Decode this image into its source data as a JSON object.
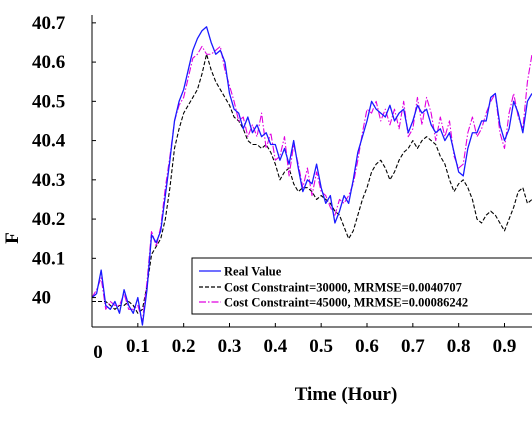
{
  "chart_data": {
    "type": "line",
    "xlabel": "Time (Hour)",
    "ylabel": "F",
    "xlim": [
      0,
      0.96
    ],
    "ylim": [
      39.925,
      40.72
    ],
    "x_ticks": [
      "0",
      "0.1",
      "0.2",
      "0.3",
      "0.4",
      "0.5",
      "0.6",
      "0.7",
      "0.8",
      "0.9"
    ],
    "y_ticks": [
      "40",
      "40.1",
      "40.2",
      "40.3",
      "40.4",
      "40.5",
      "40.6",
      "40.7"
    ],
    "grid": false,
    "legend_position": "bottom-right",
    "series": [
      {
        "name": "Real Value",
        "color": "#1a1aff",
        "style": "solid",
        "x": [
          0,
          0.01,
          0.02,
          0.03,
          0.04,
          0.05,
          0.06,
          0.07,
          0.08,
          0.09,
          0.1,
          0.11,
          0.12,
          0.13,
          0.14,
          0.15,
          0.16,
          0.17,
          0.18,
          0.19,
          0.2,
          0.21,
          0.22,
          0.23,
          0.24,
          0.25,
          0.26,
          0.27,
          0.28,
          0.29,
          0.3,
          0.31,
          0.32,
          0.33,
          0.34,
          0.35,
          0.36,
          0.37,
          0.38,
          0.39,
          0.4,
          0.41,
          0.42,
          0.43,
          0.44,
          0.45,
          0.46,
          0.47,
          0.48,
          0.49,
          0.5,
          0.51,
          0.52,
          0.53,
          0.54,
          0.55,
          0.56,
          0.57,
          0.58,
          0.59,
          0.6,
          0.61,
          0.62,
          0.63,
          0.64,
          0.65,
          0.66,
          0.67,
          0.68,
          0.69,
          0.7,
          0.71,
          0.72,
          0.73,
          0.74,
          0.75,
          0.76,
          0.77,
          0.78,
          0.79,
          0.8,
          0.81,
          0.82,
          0.83,
          0.84,
          0.85,
          0.86,
          0.87,
          0.88,
          0.89,
          0.9,
          0.91,
          0.92,
          0.93,
          0.94,
          0.95,
          0.96
        ],
        "y": [
          40.0,
          40.01,
          40.07,
          39.98,
          39.97,
          39.99,
          39.96,
          40.02,
          39.98,
          39.96,
          40.0,
          39.93,
          40.02,
          40.16,
          40.14,
          40.17,
          40.26,
          40.35,
          40.45,
          40.5,
          40.53,
          40.58,
          40.63,
          40.66,
          40.68,
          40.69,
          40.65,
          40.62,
          40.63,
          40.6,
          40.52,
          40.48,
          40.47,
          40.43,
          40.46,
          40.42,
          40.44,
          40.41,
          40.42,
          40.39,
          40.39,
          40.35,
          40.38,
          40.34,
          40.4,
          40.33,
          40.27,
          40.3,
          40.29,
          40.34,
          40.28,
          40.24,
          40.26,
          40.19,
          40.22,
          40.26,
          40.24,
          40.3,
          40.37,
          40.41,
          40.45,
          40.5,
          40.48,
          40.47,
          40.46,
          40.49,
          40.45,
          40.47,
          40.48,
          40.42,
          40.45,
          40.49,
          40.47,
          40.48,
          40.44,
          40.42,
          40.43,
          40.4,
          40.42,
          40.37,
          40.32,
          40.31,
          40.38,
          40.42,
          40.42,
          40.45,
          40.45,
          40.51,
          40.52,
          40.44,
          40.4,
          40.43,
          40.5,
          40.47,
          40.42,
          40.5,
          40.52
        ]
      },
      {
        "name": "Cost Constraint=30000, MRMSE=0.0040707",
        "color": "#000000",
        "style": "dashed",
        "x": [
          0,
          0.01,
          0.02,
          0.03,
          0.04,
          0.05,
          0.06,
          0.07,
          0.08,
          0.09,
          0.1,
          0.11,
          0.12,
          0.13,
          0.14,
          0.15,
          0.16,
          0.17,
          0.18,
          0.19,
          0.2,
          0.21,
          0.22,
          0.23,
          0.24,
          0.25,
          0.26,
          0.27,
          0.28,
          0.29,
          0.3,
          0.31,
          0.32,
          0.33,
          0.34,
          0.35,
          0.36,
          0.37,
          0.38,
          0.39,
          0.4,
          0.41,
          0.42,
          0.43,
          0.44,
          0.45,
          0.46,
          0.47,
          0.48,
          0.49,
          0.5,
          0.51,
          0.52,
          0.53,
          0.54,
          0.55,
          0.56,
          0.57,
          0.58,
          0.59,
          0.6,
          0.61,
          0.62,
          0.63,
          0.64,
          0.65,
          0.66,
          0.67,
          0.68,
          0.69,
          0.7,
          0.71,
          0.72,
          0.73,
          0.74,
          0.75,
          0.76,
          0.77,
          0.78,
          0.79,
          0.8,
          0.81,
          0.82,
          0.83,
          0.84,
          0.85,
          0.86,
          0.87,
          0.88,
          0.89,
          0.9,
          0.91,
          0.92,
          0.93,
          0.94,
          0.95,
          0.96
        ],
        "y": [
          39.99,
          39.99,
          39.99,
          39.99,
          39.98,
          39.97,
          39.98,
          39.98,
          39.99,
          39.98,
          39.96,
          39.97,
          40.03,
          40.11,
          40.13,
          40.15,
          40.2,
          40.28,
          40.38,
          40.43,
          40.47,
          40.49,
          40.51,
          40.53,
          40.57,
          40.62,
          40.58,
          40.55,
          40.53,
          40.51,
          40.49,
          40.46,
          40.45,
          40.43,
          40.4,
          40.39,
          40.39,
          40.38,
          40.39,
          40.37,
          40.34,
          40.3,
          40.32,
          40.33,
          40.29,
          40.27,
          40.28,
          40.28,
          40.27,
          40.25,
          40.26,
          40.25,
          40.24,
          40.22,
          40.21,
          40.18,
          40.15,
          40.17,
          40.21,
          40.25,
          40.28,
          40.32,
          40.34,
          40.35,
          40.33,
          40.3,
          40.32,
          40.35,
          40.37,
          40.38,
          40.4,
          40.38,
          40.4,
          40.41,
          40.4,
          40.39,
          40.36,
          40.34,
          40.3,
          40.27,
          40.29,
          40.3,
          40.28,
          40.25,
          40.2,
          40.19,
          40.21,
          40.22,
          40.21,
          40.19,
          40.17,
          40.2,
          40.23,
          40.27,
          40.28,
          40.24,
          40.25
        ]
      },
      {
        "name": "Cost Constraint=45000, MRMSE=0.00086242",
        "color": "#e000e0",
        "style": "dashdot",
        "x": [
          0,
          0.01,
          0.02,
          0.03,
          0.04,
          0.05,
          0.06,
          0.07,
          0.08,
          0.09,
          0.1,
          0.11,
          0.12,
          0.13,
          0.14,
          0.15,
          0.16,
          0.17,
          0.18,
          0.19,
          0.2,
          0.21,
          0.22,
          0.23,
          0.24,
          0.25,
          0.26,
          0.27,
          0.28,
          0.29,
          0.3,
          0.31,
          0.32,
          0.33,
          0.34,
          0.35,
          0.36,
          0.37,
          0.38,
          0.39,
          0.4,
          0.41,
          0.42,
          0.43,
          0.44,
          0.45,
          0.46,
          0.47,
          0.48,
          0.49,
          0.5,
          0.51,
          0.52,
          0.53,
          0.54,
          0.55,
          0.56,
          0.57,
          0.58,
          0.59,
          0.6,
          0.61,
          0.62,
          0.63,
          0.64,
          0.65,
          0.66,
          0.67,
          0.68,
          0.69,
          0.7,
          0.71,
          0.72,
          0.73,
          0.74,
          0.75,
          0.76,
          0.77,
          0.78,
          0.79,
          0.8,
          0.81,
          0.82,
          0.83,
          0.84,
          0.85,
          0.86,
          0.87,
          0.88,
          0.89,
          0.9,
          0.91,
          0.92,
          0.93,
          0.94,
          0.95,
          0.96
        ],
        "y": [
          40.0,
          40.02,
          40.05,
          39.97,
          39.99,
          39.98,
          39.98,
          40.01,
          39.97,
          39.97,
          39.98,
          39.94,
          40.04,
          40.17,
          40.13,
          40.18,
          40.28,
          40.36,
          40.45,
          40.49,
          40.51,
          40.56,
          40.61,
          40.62,
          40.64,
          40.62,
          40.62,
          40.63,
          40.64,
          40.58,
          40.54,
          40.5,
          40.45,
          40.46,
          40.41,
          40.44,
          40.41,
          40.47,
          40.38,
          40.42,
          40.35,
          40.36,
          40.41,
          40.31,
          40.39,
          40.34,
          40.28,
          40.33,
          40.26,
          40.32,
          40.27,
          40.26,
          40.23,
          40.21,
          40.25,
          40.24,
          40.26,
          40.29,
          40.35,
          40.42,
          40.48,
          40.47,
          40.5,
          40.45,
          40.48,
          40.44,
          40.48,
          40.43,
          40.5,
          40.41,
          40.43,
          40.51,
          40.44,
          40.51,
          40.47,
          40.4,
          40.46,
          40.41,
          40.45,
          40.36,
          40.33,
          40.34,
          40.42,
          40.46,
          40.41,
          40.43,
          40.47,
          40.5,
          40.52,
          40.42,
          40.38,
          40.47,
          40.52,
          40.46,
          40.43,
          40.55,
          40.62
        ]
      }
    ]
  }
}
